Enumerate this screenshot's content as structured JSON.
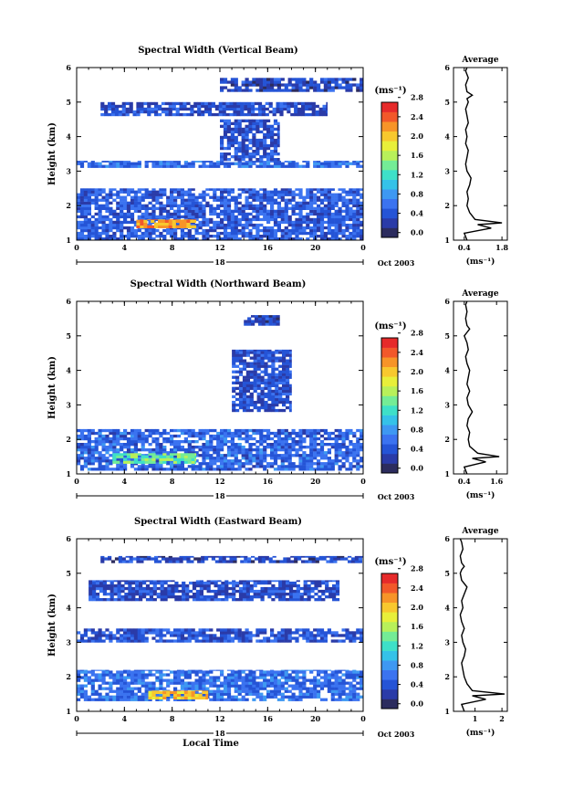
{
  "colorbar": {
    "unit_label": "(ms⁻¹)",
    "tick_values": [
      0.0,
      0.4,
      0.8,
      1.2,
      1.6,
      2.0,
      2.4,
      2.8
    ],
    "tick_labels": [
      "0.0",
      "0.4",
      "0.8",
      "1.2",
      "1.6",
      "2.0",
      "2.4",
      "2.8"
    ],
    "color_levels": [
      "#2c2c5e",
      "#2a3ba8",
      "#2554d6",
      "#3b73f0",
      "#3e98f2",
      "#35c2e8",
      "#3ee0c8",
      "#74ec96",
      "#b8f05a",
      "#e8ef3a",
      "#f8c82e",
      "#f79428",
      "#f2582a",
      "#e62a2a"
    ]
  },
  "chart_data": [
    {
      "type": "heatmap",
      "title": "Spectral Width (Vertical Beam)",
      "xlabel": "",
      "ylabel": "Height (km)",
      "x_tick_labels": [
        "0",
        "4",
        "8",
        "12",
        "16",
        "20",
        "0"
      ],
      "y_tick_labels": [
        "1",
        "2",
        "3",
        "4",
        "5",
        "6"
      ],
      "date_labels": {
        "day": "18",
        "month": "Oct 2003"
      },
      "xlim": [
        0,
        24
      ],
      "ylim": [
        1,
        6
      ],
      "regions": [
        {
          "t": [
            0,
            24
          ],
          "h": [
            1.0,
            2.5
          ],
          "level": 0.45
        },
        {
          "t": [
            5,
            10
          ],
          "h": [
            1.35,
            1.6
          ],
          "level": 2.2
        },
        {
          "t": [
            0,
            24
          ],
          "h": [
            3.1,
            3.3
          ],
          "level": 0.55
        },
        {
          "t": [
            2,
            21
          ],
          "h": [
            4.6,
            5.0
          ],
          "level": 0.35
        },
        {
          "t": [
            12,
            17
          ],
          "h": [
            3.3,
            4.5
          ],
          "level": 0.35
        },
        {
          "t": [
            12,
            24
          ],
          "h": [
            5.3,
            5.7
          ],
          "level": 0.3
        }
      ]
    },
    {
      "type": "heatmap",
      "title": "Spectral Width (Northward Beam)",
      "xlabel": "",
      "ylabel": "Height (km)",
      "x_tick_labels": [
        "0",
        "4",
        "8",
        "12",
        "16",
        "20",
        "0"
      ],
      "y_tick_labels": [
        "1",
        "2",
        "3",
        "4",
        "5",
        "6"
      ],
      "date_labels": {
        "day": "18",
        "month": "Oct 2003"
      },
      "xlim": [
        0,
        24
      ],
      "ylim": [
        1,
        6
      ],
      "regions": [
        {
          "t": [
            0,
            24
          ],
          "h": [
            1.1,
            2.3
          ],
          "level": 0.5
        },
        {
          "t": [
            3,
            10
          ],
          "h": [
            1.3,
            1.6
          ],
          "level": 1.4
        },
        {
          "t": [
            13,
            18
          ],
          "h": [
            2.8,
            4.6
          ],
          "level": 0.35
        },
        {
          "t": [
            14,
            17
          ],
          "h": [
            5.3,
            5.6
          ],
          "level": 0.3
        }
      ]
    },
    {
      "type": "heatmap",
      "title": "Spectral Width (Eastward Beam)",
      "xlabel": "Local Time",
      "ylabel": "Height (km)",
      "x_tick_labels": [
        "0",
        "4",
        "8",
        "12",
        "16",
        "20",
        "0"
      ],
      "y_tick_labels": [
        "1",
        "2",
        "3",
        "4",
        "5",
        "6"
      ],
      "date_labels": {
        "day": "18",
        "month": "Oct 2003"
      },
      "xlim": [
        0,
        24
      ],
      "ylim": [
        1,
        6
      ],
      "regions": [
        {
          "t": [
            0,
            24
          ],
          "h": [
            1.3,
            2.2
          ],
          "level": 0.55
        },
        {
          "t": [
            6,
            11
          ],
          "h": [
            1.35,
            1.6
          ],
          "level": 2.0
        },
        {
          "t": [
            0,
            24
          ],
          "h": [
            3.0,
            3.4
          ],
          "level": 0.4
        },
        {
          "t": [
            1,
            22
          ],
          "h": [
            4.2,
            4.8
          ],
          "level": 0.35
        },
        {
          "t": [
            2,
            24
          ],
          "h": [
            5.3,
            5.5
          ],
          "level": 0.3
        }
      ]
    },
    {
      "type": "line",
      "title": "Average",
      "xlabel": "(ms⁻¹)",
      "x_tick_labels": [
        "0.4",
        "1.8"
      ],
      "x_tick_values": [
        0.4,
        1.8
      ],
      "y_tick_labels": [
        "1",
        "2",
        "3",
        "4",
        "5",
        "6"
      ],
      "xlim": [
        0.0,
        2.0
      ],
      "ylim": [
        1,
        6
      ],
      "x": [
        0.5,
        0.4,
        1.4,
        0.9,
        1.8,
        0.8,
        0.6,
        0.5,
        0.55,
        0.5,
        0.6,
        0.65,
        0.5,
        0.45,
        0.5,
        0.55,
        0.45,
        0.5,
        0.45,
        0.55,
        0.5,
        0.45,
        0.55,
        0.5,
        0.7,
        0.5,
        0.45,
        0.55,
        0.45,
        0.5
      ],
      "y": [
        1.0,
        1.2,
        1.35,
        1.45,
        1.5,
        1.6,
        1.8,
        2.0,
        2.2,
        2.4,
        2.6,
        2.8,
        3.0,
        3.2,
        3.4,
        3.6,
        3.8,
        4.0,
        4.2,
        4.4,
        4.6,
        4.8,
        5.0,
        5.1,
        5.2,
        5.3,
        5.5,
        5.7,
        5.9,
        6.0
      ]
    },
    {
      "type": "line",
      "title": "Average",
      "xlabel": "(ms⁻¹)",
      "x_tick_labels": [
        "0.4",
        "1.6"
      ],
      "x_tick_values": [
        0.4,
        1.6
      ],
      "y_tick_labels": [
        "1",
        "2",
        "3",
        "4",
        "5",
        "6"
      ],
      "xlim": [
        0.0,
        2.0
      ],
      "ylim": [
        1,
        6
      ],
      "x": [
        0.5,
        0.4,
        1.2,
        0.7,
        1.7,
        0.9,
        0.6,
        0.55,
        0.6,
        0.5,
        0.55,
        0.7,
        0.55,
        0.5,
        0.6,
        0.5,
        0.55,
        0.6,
        0.5,
        0.45,
        0.55,
        0.5,
        0.4,
        0.5,
        0.6,
        0.5,
        0.45,
        0.5,
        0.45,
        0.5
      ],
      "y": [
        1.0,
        1.2,
        1.35,
        1.45,
        1.5,
        1.6,
        1.8,
        2.0,
        2.2,
        2.4,
        2.6,
        2.8,
        3.0,
        3.2,
        3.4,
        3.6,
        3.8,
        4.0,
        4.2,
        4.4,
        4.6,
        4.8,
        5.0,
        5.1,
        5.2,
        5.3,
        5.5,
        5.7,
        5.9,
        6.0
      ]
    },
    {
      "type": "line",
      "title": "Average",
      "xlabel": "(ms⁻¹)",
      "x_tick_labels": [
        "1",
        "2"
      ],
      "x_tick_values": [
        1,
        2
      ],
      "y_tick_labels": [
        "1",
        "2",
        "3",
        "4",
        "5",
        "6"
      ],
      "xlim": [
        0.2,
        2.2
      ],
      "ylim": [
        1,
        6
      ],
      "x": [
        0.6,
        0.5,
        1.4,
        0.9,
        2.1,
        0.9,
        0.7,
        0.6,
        0.55,
        0.5,
        0.6,
        0.65,
        0.55,
        0.5,
        0.6,
        0.5,
        0.45,
        0.55,
        0.5,
        0.6,
        0.7,
        0.5,
        0.45,
        0.5,
        0.6,
        0.5,
        0.45,
        0.55,
        0.5,
        0.45
      ],
      "y": [
        1.0,
        1.2,
        1.35,
        1.45,
        1.5,
        1.6,
        1.8,
        2.0,
        2.2,
        2.4,
        2.6,
        2.8,
        3.0,
        3.2,
        3.4,
        3.6,
        3.8,
        4.0,
        4.2,
        4.4,
        4.6,
        4.8,
        5.0,
        5.1,
        5.2,
        5.3,
        5.5,
        5.7,
        5.9,
        6.0
      ]
    }
  ]
}
